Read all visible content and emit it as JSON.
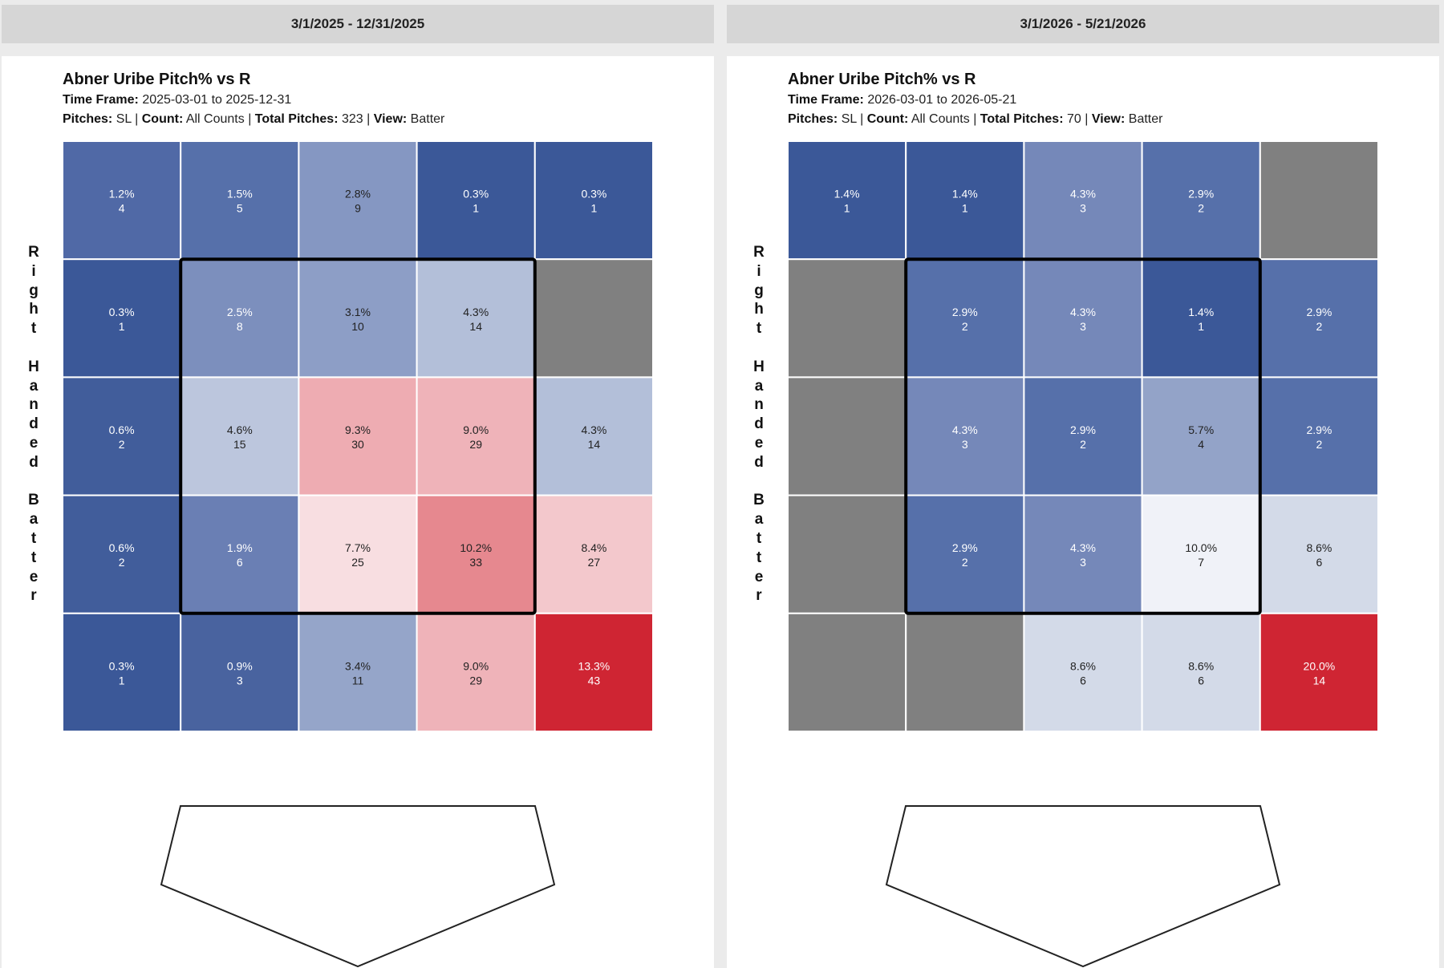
{
  "chart_data": [
    {
      "type": "heatmap",
      "header": "3/1/2025 - 12/31/2025",
      "title": "Abner Uribe Pitch% vs R",
      "time_frame_label": "Time Frame:",
      "time_frame_value": "2025-03-01 to 2025-12-31",
      "pitches_label": "Pitches:",
      "pitches_value": "SL",
      "count_label": "Count:",
      "count_value": "All Counts",
      "total_label": "Total Pitches:",
      "total_value": "323",
      "view_label": "View:",
      "view_value": "Batter",
      "side_label": "Right Handed Batter",
      "grid_rows": 5,
      "grid_cols": 5,
      "strike_zone": "inner 3x3",
      "cells": [
        [
          {
            "pct": "1.2%",
            "n": "4",
            "color": "#5069a6"
          },
          {
            "pct": "1.5%",
            "n": "5",
            "color": "#5670aa"
          },
          {
            "pct": "2.8%",
            "n": "9",
            "color": "#8597c2"
          },
          {
            "pct": "0.3%",
            "n": "1",
            "color": "#3b5898"
          },
          {
            "pct": "0.3%",
            "n": "1",
            "color": "#3b5898"
          }
        ],
        [
          {
            "pct": "0.3%",
            "n": "1",
            "color": "#3b5898"
          },
          {
            "pct": "2.5%",
            "n": "8",
            "color": "#7c8fbd"
          },
          {
            "pct": "3.1%",
            "n": "10",
            "color": "#8d9ec6"
          },
          {
            "pct": "4.3%",
            "n": "14",
            "color": "#b3bfd9"
          },
          {
            "pct": "",
            "n": "",
            "color": "#808080"
          }
        ],
        [
          {
            "pct": "0.6%",
            "n": "2",
            "color": "#415d9b"
          },
          {
            "pct": "4.6%",
            "n": "15",
            "color": "#bcc6dd"
          },
          {
            "pct": "9.3%",
            "n": "30",
            "color": "#eeacb2"
          },
          {
            "pct": "9.0%",
            "n": "29",
            "color": "#efb3b9"
          },
          {
            "pct": "4.3%",
            "n": "14",
            "color": "#b3bfd9"
          }
        ],
        [
          {
            "pct": "0.6%",
            "n": "2",
            "color": "#415d9b"
          },
          {
            "pct": "1.9%",
            "n": "6",
            "color": "#6a7fb4"
          },
          {
            "pct": "7.7%",
            "n": "25",
            "color": "#f8dee1"
          },
          {
            "pct": "10.2%",
            "n": "33",
            "color": "#e6888f"
          },
          {
            "pct": "8.4%",
            "n": "27",
            "color": "#f3c8cc"
          }
        ],
        [
          {
            "pct": "0.3%",
            "n": "1",
            "color": "#3b5898"
          },
          {
            "pct": "0.9%",
            "n": "3",
            "color": "#49639f"
          },
          {
            "pct": "3.4%",
            "n": "11",
            "color": "#95a5c9"
          },
          {
            "pct": "9.0%",
            "n": "29",
            "color": "#efb3b9"
          },
          {
            "pct": "13.3%",
            "n": "43",
            "color": "#cf2533"
          }
        ]
      ]
    },
    {
      "type": "heatmap",
      "header": "3/1/2026 - 5/21/2026",
      "title": "Abner Uribe Pitch% vs R",
      "time_frame_label": "Time Frame:",
      "time_frame_value": "2026-03-01 to 2026-05-21",
      "pitches_label": "Pitches:",
      "pitches_value": "SL",
      "count_label": "Count:",
      "count_value": "All Counts",
      "total_label": "Total Pitches:",
      "total_value": "70",
      "view_label": "View:",
      "view_value": "Batter",
      "side_label": "Right Handed Batter",
      "grid_rows": 5,
      "grid_cols": 5,
      "strike_zone": "inner 3x3",
      "cells": [
        [
          {
            "pct": "1.4%",
            "n": "1",
            "color": "#3b5898"
          },
          {
            "pct": "1.4%",
            "n": "1",
            "color": "#3b5898"
          },
          {
            "pct": "4.3%",
            "n": "3",
            "color": "#7588b9"
          },
          {
            "pct": "2.9%",
            "n": "2",
            "color": "#5670aa"
          },
          {
            "pct": "",
            "n": "",
            "color": "#808080"
          }
        ],
        [
          {
            "pct": "",
            "n": "",
            "color": "#808080"
          },
          {
            "pct": "2.9%",
            "n": "2",
            "color": "#5670aa"
          },
          {
            "pct": "4.3%",
            "n": "3",
            "color": "#7588b9"
          },
          {
            "pct": "1.4%",
            "n": "1",
            "color": "#3b5898"
          },
          {
            "pct": "2.9%",
            "n": "2",
            "color": "#5670aa"
          }
        ],
        [
          {
            "pct": "",
            "n": "",
            "color": "#808080"
          },
          {
            "pct": "4.3%",
            "n": "3",
            "color": "#7588b9"
          },
          {
            "pct": "2.9%",
            "n": "2",
            "color": "#5670aa"
          },
          {
            "pct": "5.7%",
            "n": "4",
            "color": "#93a3c8"
          },
          {
            "pct": "2.9%",
            "n": "2",
            "color": "#5670aa"
          }
        ],
        [
          {
            "pct": "",
            "n": "",
            "color": "#808080"
          },
          {
            "pct": "2.9%",
            "n": "2",
            "color": "#5670aa"
          },
          {
            "pct": "4.3%",
            "n": "3",
            "color": "#7588b9"
          },
          {
            "pct": "10.0%",
            "n": "7",
            "color": "#f0f2f8"
          },
          {
            "pct": "8.6%",
            "n": "6",
            "color": "#d3dae8"
          }
        ],
        [
          {
            "pct": "",
            "n": "",
            "color": "#808080"
          },
          {
            "pct": "",
            "n": "",
            "color": "#808080"
          },
          {
            "pct": "8.6%",
            "n": "6",
            "color": "#d3dae8"
          },
          {
            "pct": "8.6%",
            "n": "6",
            "color": "#d3dae8"
          },
          {
            "pct": "20.0%",
            "n": "14",
            "color": "#cf2533"
          }
        ]
      ]
    }
  ]
}
